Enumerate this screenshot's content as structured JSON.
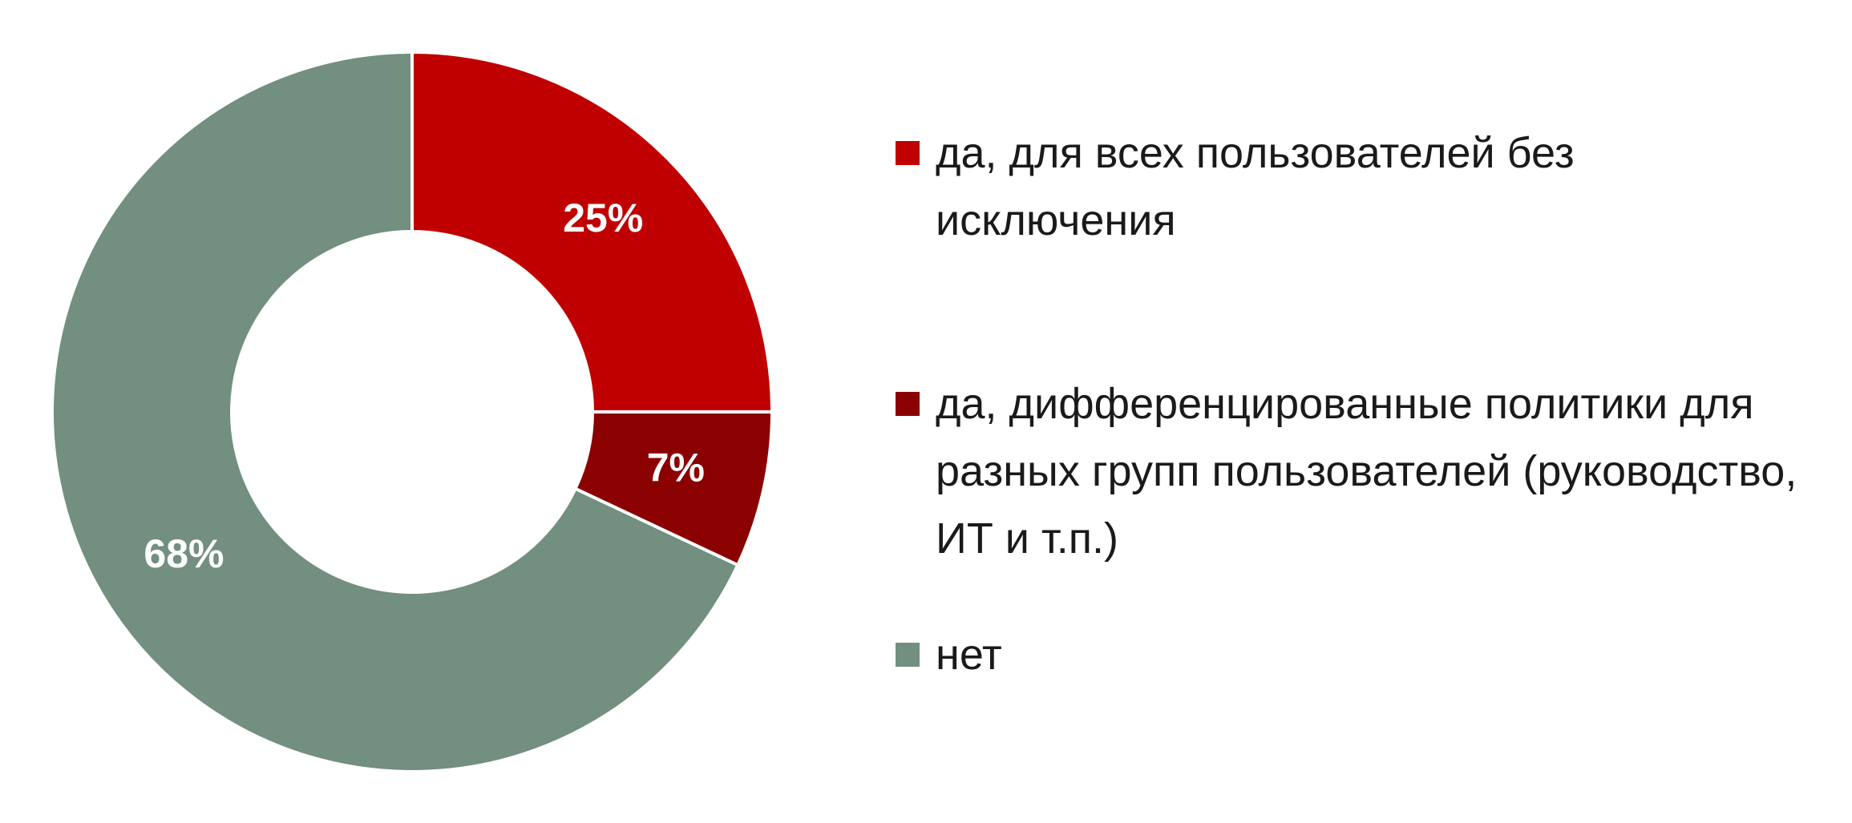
{
  "chart_data": {
    "type": "donut",
    "categories": [
      "да, для всех пользователей без исключения",
      "да, дифференцированные политики для разных групп пользователей (руководство, ИТ и т.п.)",
      "нет"
    ],
    "values": [
      25,
      7,
      68
    ],
    "value_labels": [
      "25%",
      "7%",
      "68%"
    ],
    "colors": [
      "#c00000",
      "#8b0000",
      "#728f80"
    ],
    "legend": "right"
  }
}
